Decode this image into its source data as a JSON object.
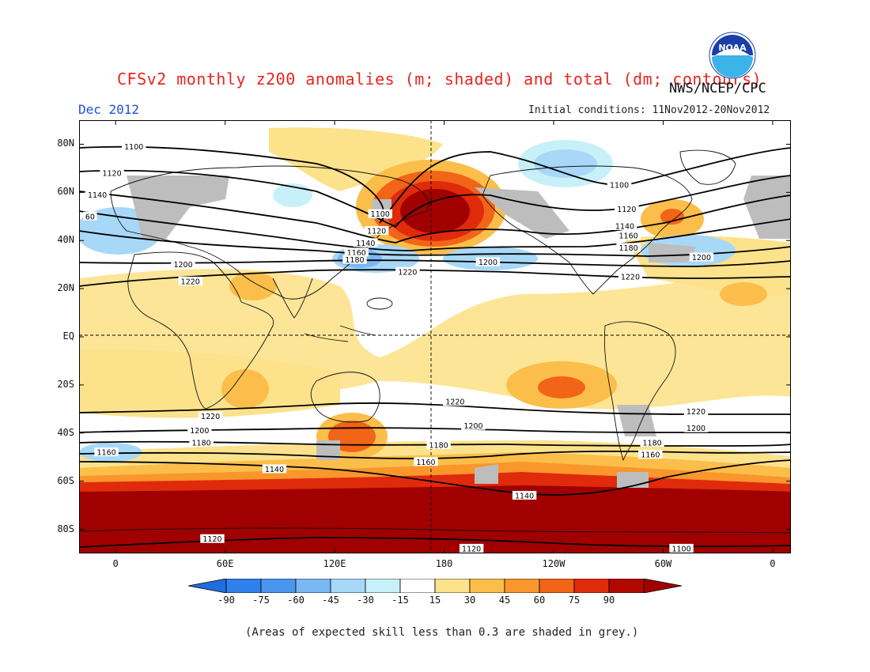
{
  "header": {
    "title": "CFSv2 monthly z200 anomalies (m; shaded) and total (dm; contours)",
    "agency": "NWS/NCEP/CPC",
    "month": "Dec 2012",
    "initial_conditions": "Initial conditions: 11Nov2012-20Nov2012",
    "logo_text": "NOAA"
  },
  "map": {
    "lat_labels": [
      "80N",
      "60N",
      "40N",
      "20N",
      "EQ",
      "20S",
      "40S",
      "60S",
      "80S"
    ],
    "lat_values": [
      80,
      60,
      40,
      20,
      0,
      -20,
      -40,
      -60,
      -80
    ],
    "lon_labels": [
      "0",
      "60E",
      "120E",
      "180",
      "120W",
      "60W",
      "0"
    ],
    "lon_values": [
      0,
      60,
      120,
      180,
      240,
      300,
      360
    ],
    "lon_range": [
      -20,
      370
    ],
    "lat_range": [
      -90,
      90
    ],
    "contour_labels": [
      {
        "text": "1100",
        "lon": 10,
        "lat": 79
      },
      {
        "text": "1120",
        "lon": -2,
        "lat": 68
      },
      {
        "text": "1140",
        "lon": -10,
        "lat": 59
      },
      {
        "text": "60",
        "lon": -14,
        "lat": 50
      },
      {
        "text": "1100",
        "lon": 145,
        "lat": 51
      },
      {
        "text": "1120",
        "lon": 143,
        "lat": 44
      },
      {
        "text": "1140",
        "lon": 137,
        "lat": 39
      },
      {
        "text": "1160",
        "lon": 132,
        "lat": 35
      },
      {
        "text": "1180",
        "lon": 131,
        "lat": 32
      },
      {
        "text": "1200",
        "lon": 37,
        "lat": 30
      },
      {
        "text": "1220",
        "lon": 41,
        "lat": 23
      },
      {
        "text": "1220",
        "lon": 160,
        "lat": 27
      },
      {
        "text": "1200",
        "lon": 204,
        "lat": 31
      },
      {
        "text": "1100",
        "lon": 276,
        "lat": 63
      },
      {
        "text": "1120",
        "lon": 280,
        "lat": 53
      },
      {
        "text": "1140",
        "lon": 279,
        "lat": 46
      },
      {
        "text": "1160",
        "lon": 281,
        "lat": 42
      },
      {
        "text": "1180",
        "lon": 281,
        "lat": 37
      },
      {
        "text": "1200",
        "lon": 321,
        "lat": 33
      },
      {
        "text": "1220",
        "lon": 282,
        "lat": 25
      },
      {
        "text": "1220",
        "lon": 186,
        "lat": -27
      },
      {
        "text": "1220",
        "lon": 52,
        "lat": -33
      },
      {
        "text": "1200",
        "lon": 196,
        "lat": -37
      },
      {
        "text": "1200",
        "lon": 46,
        "lat": -39
      },
      {
        "text": "1180",
        "lon": 47,
        "lat": -44
      },
      {
        "text": "1180",
        "lon": 177,
        "lat": -45
      },
      {
        "text": "1160",
        "lon": -5,
        "lat": -48
      },
      {
        "text": "1160",
        "lon": 170,
        "lat": -52
      },
      {
        "text": "1140",
        "lon": 87,
        "lat": -55
      },
      {
        "text": "1180",
        "lon": 294,
        "lat": -44
      },
      {
        "text": "1160",
        "lon": 293,
        "lat": -49
      },
      {
        "text": "1220",
        "lon": 318,
        "lat": -31
      },
      {
        "text": "1200",
        "lon": 318,
        "lat": -38
      },
      {
        "text": "1140",
        "lon": 224,
        "lat": -66
      },
      {
        "text": "1120",
        "lon": 53,
        "lat": -84
      },
      {
        "text": "1120",
        "lon": 195,
        "lat": -88
      },
      {
        "text": "1100",
        "lon": 310,
        "lat": -88
      }
    ]
  },
  "colorbar": {
    "labels": [
      "-90",
      "-75",
      "-60",
      "-45",
      "-30",
      "-15",
      "15",
      "30",
      "45",
      "60",
      "75",
      "90"
    ],
    "colors": [
      "#1e6ee0",
      "#2f80ea",
      "#4a96ee",
      "#7ab8f4",
      "#a8d8f8",
      "#c8f0f8",
      "#ffffff",
      "#fde28c",
      "#fcbe4a",
      "#f9962c",
      "#f26418",
      "#e02a0c",
      "#b00800",
      "#a00000"
    ]
  },
  "caption": "(Areas of expected skill less than 0.3 are shaded in grey.)"
}
